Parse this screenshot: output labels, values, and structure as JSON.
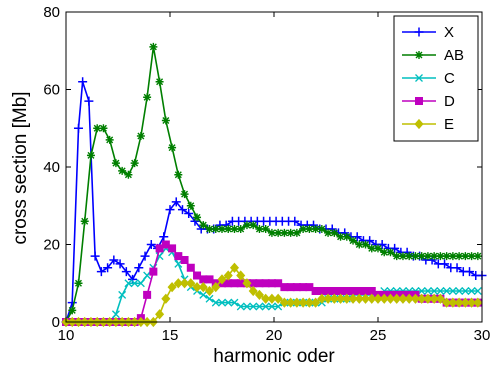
{
  "chart_data": {
    "type": "line",
    "title": "",
    "xlabel": "harmonic oder",
    "ylabel": "cross section [Mb]",
    "xlim": [
      10,
      30
    ],
    "ylim": [
      0,
      80
    ],
    "xticks": [
      "10",
      "15",
      "20",
      "25",
      "30"
    ],
    "yticks": [
      "0",
      "20",
      "40",
      "60",
      "80"
    ],
    "grid": false,
    "legend_position": "top-right",
    "series": [
      {
        "name": "X",
        "color": "#0000ff",
        "marker": "plus",
        "x": [
          10.0,
          10.3,
          10.6,
          10.8,
          11.1,
          11.4,
          11.7,
          12.0,
          12.3,
          12.6,
          12.9,
          13.2,
          13.5,
          13.8,
          14.1,
          14.4,
          14.7,
          15.0,
          15.3,
          15.6,
          15.9,
          16.2,
          16.5,
          16.8,
          17.1,
          17.4,
          17.7,
          18.0,
          18.3,
          18.6,
          18.9,
          19.2,
          19.5,
          19.8,
          20.1,
          20.4,
          20.7,
          21.0,
          21.3,
          21.6,
          21.9,
          22.2,
          22.5,
          22.8,
          23.1,
          23.4,
          23.7,
          24.0,
          24.3,
          24.6,
          24.9,
          25.2,
          25.5,
          25.8,
          26.1,
          26.4,
          26.7,
          27.0,
          27.3,
          27.6,
          27.9,
          28.2,
          28.5,
          28.8,
          29.1,
          29.4,
          29.7,
          30.0
        ],
        "y": [
          0,
          5,
          50,
          62,
          57,
          17,
          13,
          14,
          16,
          15,
          13,
          11,
          14,
          17,
          20,
          19,
          22,
          29,
          31,
          29,
          28,
          26,
          24,
          24,
          24,
          25,
          25,
          26,
          26,
          26,
          26,
          26,
          26,
          26,
          26,
          26,
          26,
          26,
          25,
          25,
          25,
          24,
          24,
          24,
          23,
          23,
          22,
          22,
          21,
          21,
          20,
          20,
          19,
          19,
          18,
          18,
          17,
          17,
          16,
          16,
          15,
          15,
          14,
          14,
          13,
          13,
          12,
          12
        ]
      },
      {
        "name": "AB",
        "color": "#007f00",
        "marker": "star",
        "x": [
          10.0,
          10.3,
          10.6,
          10.9,
          11.2,
          11.5,
          11.8,
          12.1,
          12.4,
          12.7,
          13.0,
          13.3,
          13.6,
          13.9,
          14.2,
          14.5,
          14.8,
          15.1,
          15.4,
          15.7,
          16.0,
          16.3,
          16.6,
          16.9,
          17.2,
          17.5,
          17.8,
          18.1,
          18.4,
          18.7,
          19.0,
          19.3,
          19.6,
          19.9,
          20.2,
          20.5,
          20.8,
          21.1,
          21.4,
          21.7,
          22.0,
          22.3,
          22.6,
          22.9,
          23.2,
          23.5,
          23.8,
          24.1,
          24.4,
          24.7,
          25.0,
          25.3,
          25.6,
          25.9,
          26.2,
          26.5,
          26.8,
          27.1,
          27.4,
          27.7,
          28.0,
          28.3,
          28.6,
          28.9,
          29.2,
          29.5,
          29.8
        ],
        "y": [
          0,
          3,
          10,
          26,
          43,
          50,
          50,
          47,
          41,
          39,
          38,
          41,
          48,
          58,
          71,
          62,
          52,
          45,
          38,
          33,
          30,
          27,
          25,
          24,
          24,
          24,
          24,
          24,
          24,
          25,
          25,
          24,
          24,
          23,
          23,
          23,
          23,
          23,
          24,
          24,
          24,
          24,
          23,
          23,
          22,
          22,
          21,
          20,
          20,
          19,
          19,
          18,
          18,
          17,
          17,
          17,
          17,
          17,
          17,
          17,
          17,
          17,
          17,
          17,
          17,
          17,
          17
        ]
      },
      {
        "name": "C",
        "color": "#00bfbf",
        "marker": "x",
        "x": [
          10.0,
          10.3,
          10.6,
          10.9,
          11.2,
          11.5,
          11.8,
          12.1,
          12.4,
          12.7,
          13.0,
          13.3,
          13.6,
          13.9,
          14.2,
          14.5,
          14.8,
          15.1,
          15.4,
          15.7,
          16.0,
          16.3,
          16.6,
          16.9,
          17.2,
          17.5,
          17.8,
          18.1,
          18.4,
          18.7,
          19.0,
          19.3,
          19.6,
          19.9,
          20.2,
          20.5,
          20.8,
          21.1,
          21.4,
          21.7,
          22.0,
          22.3,
          22.6,
          22.9,
          23.2,
          23.5,
          23.8,
          24.1,
          24.4,
          24.7,
          25.0,
          25.3,
          25.6,
          25.9,
          26.2,
          26.5,
          26.8,
          27.1,
          27.4,
          27.7,
          28.0,
          28.3,
          28.6,
          28.9,
          29.2,
          29.5,
          29.8
        ],
        "y": [
          0,
          0,
          0,
          0,
          0,
          0,
          0,
          0,
          2,
          7,
          10,
          10,
          10,
          12,
          14,
          17,
          19,
          18,
          15,
          11,
          9,
          8,
          7,
          6,
          5,
          5,
          5,
          5,
          4,
          4,
          4,
          4,
          4,
          4,
          4,
          5,
          5,
          5,
          5,
          5,
          5,
          5,
          6,
          6,
          6,
          6,
          7,
          7,
          7,
          7,
          7,
          8,
          8,
          8,
          8,
          8,
          8,
          8,
          8,
          8,
          8,
          8,
          8,
          8,
          8,
          8,
          8
        ]
      },
      {
        "name": "D",
        "color": "#bf00bf",
        "marker": "square",
        "x": [
          10.0,
          10.3,
          10.6,
          10.9,
          11.2,
          11.5,
          11.8,
          12.1,
          12.4,
          12.7,
          13.0,
          13.3,
          13.6,
          13.9,
          14.2,
          14.5,
          14.8,
          15.1,
          15.4,
          15.7,
          16.0,
          16.3,
          16.6,
          16.9,
          17.2,
          17.5,
          17.8,
          18.1,
          18.4,
          18.7,
          19.0,
          19.3,
          19.6,
          19.9,
          20.2,
          20.5,
          20.8,
          21.1,
          21.4,
          21.7,
          22.0,
          22.3,
          22.6,
          22.9,
          23.2,
          23.5,
          23.8,
          24.1,
          24.4,
          24.7,
          25.0,
          25.3,
          25.6,
          25.9,
          26.2,
          26.5,
          26.8,
          27.1,
          27.4,
          27.7,
          28.0,
          28.3,
          28.6,
          28.9,
          29.2,
          29.5,
          29.8
        ],
        "y": [
          0,
          0,
          0,
          0,
          0,
          0,
          0,
          0,
          0,
          0,
          0,
          0,
          1,
          7,
          13,
          19,
          20,
          19,
          17,
          16,
          14,
          12,
          11,
          11,
          10,
          10,
          10,
          10,
          10,
          10,
          10,
          10,
          10,
          10,
          10,
          9,
          9,
          9,
          9,
          9,
          8,
          8,
          8,
          8,
          8,
          8,
          8,
          8,
          8,
          8,
          7,
          7,
          7,
          7,
          7,
          7,
          7,
          6,
          6,
          6,
          6,
          5,
          5,
          5,
          5,
          5,
          5
        ]
      },
      {
        "name": "E",
        "color": "#bfbf00",
        "marker": "diamond",
        "x": [
          10.0,
          10.3,
          10.6,
          10.9,
          11.2,
          11.5,
          11.8,
          12.1,
          12.4,
          12.7,
          13.0,
          13.3,
          13.6,
          13.9,
          14.2,
          14.5,
          14.8,
          15.1,
          15.4,
          15.7,
          16.0,
          16.3,
          16.6,
          16.9,
          17.2,
          17.5,
          17.8,
          18.1,
          18.4,
          18.7,
          19.0,
          19.3,
          19.6,
          19.9,
          20.2,
          20.5,
          20.8,
          21.1,
          21.4,
          21.7,
          22.0,
          22.3,
          22.6,
          22.9,
          23.2,
          23.5,
          23.8,
          24.1,
          24.4,
          24.7,
          25.0,
          25.3,
          25.6,
          25.9,
          26.2,
          26.5,
          26.8,
          27.1,
          27.4,
          27.7,
          28.0,
          28.3,
          28.6,
          28.9,
          29.2,
          29.5,
          29.8
        ],
        "y": [
          0,
          0,
          0,
          0,
          0,
          0,
          0,
          0,
          0,
          0,
          0,
          0,
          0,
          0,
          0,
          2,
          6,
          9,
          10,
          10,
          10,
          9,
          9,
          8,
          9,
          11,
          12,
          14,
          12,
          10,
          8,
          7,
          6,
          6,
          6,
          5,
          5,
          5,
          5,
          5,
          5,
          6,
          6,
          6,
          6,
          6,
          6,
          6,
          6,
          6,
          6,
          6,
          6,
          6,
          6,
          6,
          6,
          6,
          6,
          6,
          6,
          5,
          5,
          5,
          5,
          5,
          5
        ]
      }
    ]
  }
}
